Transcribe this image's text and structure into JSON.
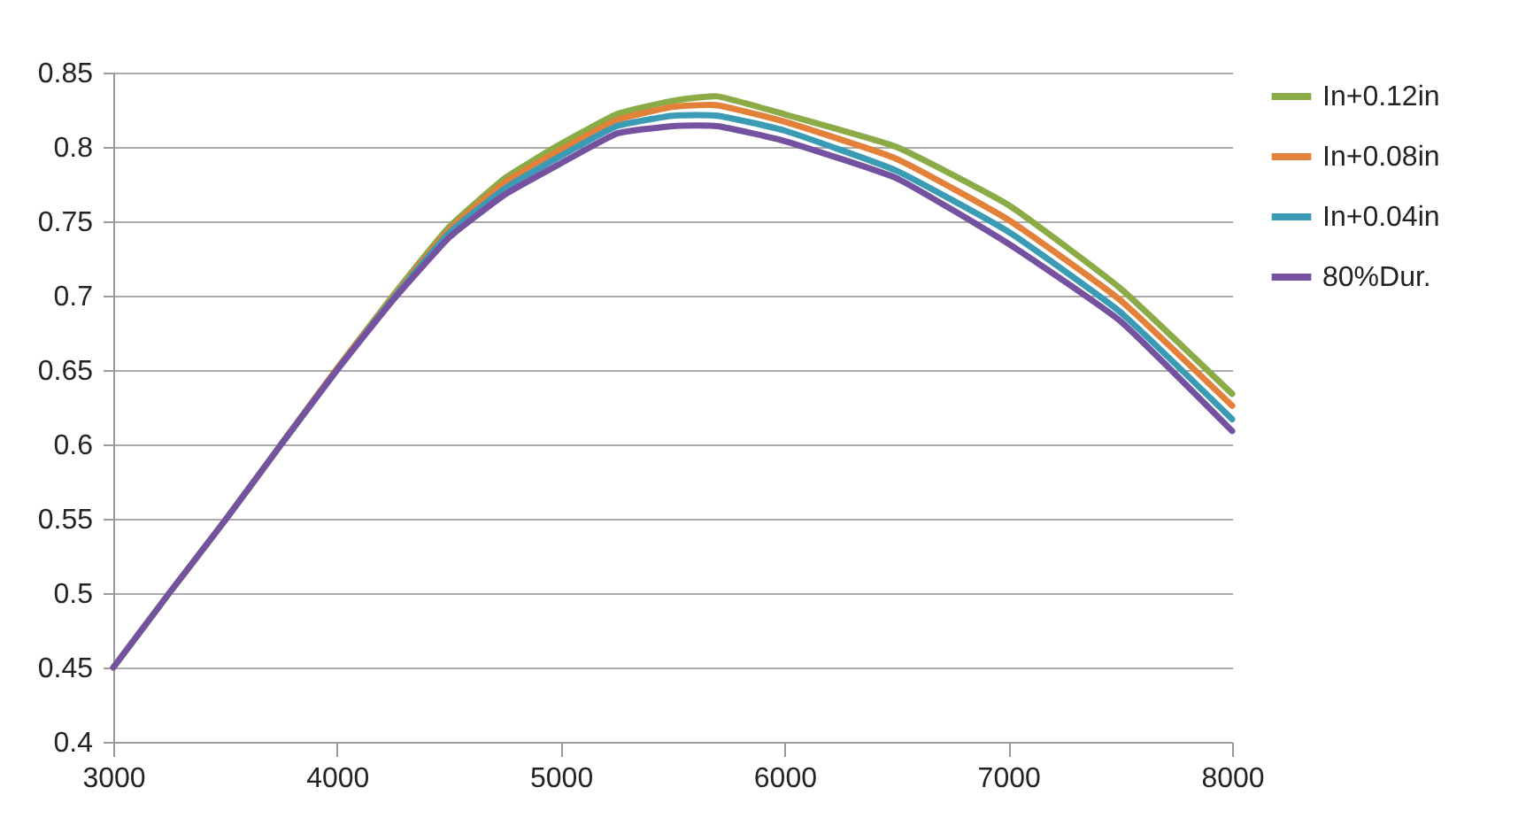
{
  "chart_data": {
    "type": "line",
    "x": [
      3000,
      3250,
      3500,
      3750,
      4000,
      4250,
      4500,
      4750,
      5000,
      5250,
      5500,
      5700,
      6000,
      6500,
      7000,
      7500,
      8000
    ],
    "series": [
      {
        "name": "In+0.12in",
        "color": "#8aab46",
        "values": [
          0.45,
          0.5,
          0.549,
          0.6,
          0.651,
          0.7,
          0.746,
          0.779,
          0.802,
          0.822,
          0.831,
          0.834,
          0.822,
          0.8,
          0.761,
          0.705,
          0.634
        ]
      },
      {
        "name": "In+0.08in",
        "color": "#e3803a",
        "values": [
          null,
          null,
          null,
          0.6,
          0.651,
          0.699,
          0.744,
          0.776,
          0.798,
          0.818,
          0.827,
          0.828,
          0.817,
          0.792,
          0.751,
          0.697,
          0.626
        ]
      },
      {
        "name": "In+0.04in",
        "color": "#3b9bb5",
        "values": [
          null,
          null,
          null,
          0.6,
          0.65,
          0.698,
          0.742,
          0.772,
          0.794,
          0.814,
          0.821,
          0.821,
          0.811,
          0.784,
          0.743,
          0.689,
          0.617
        ]
      },
      {
        "name": "80%Dur.",
        "color": "#7452a0",
        "values": [
          0.45,
          0.5,
          0.549,
          0.6,
          0.65,
          0.697,
          0.739,
          0.768,
          0.789,
          0.809,
          0.814,
          0.814,
          0.804,
          0.779,
          0.735,
          0.683,
          0.609
        ]
      }
    ],
    "xlim": [
      3000,
      8000
    ],
    "xticks": [
      3000,
      4000,
      5000,
      6000,
      7000,
      8000
    ],
    "ylim": [
      0.4,
      0.85
    ],
    "yticks": [
      0.4,
      0.45,
      0.5,
      0.55,
      0.6,
      0.65,
      0.7,
      0.75,
      0.8,
      0.85
    ],
    "grid": "y",
    "legend": "right",
    "line_style": "solid",
    "marker": "none"
  }
}
